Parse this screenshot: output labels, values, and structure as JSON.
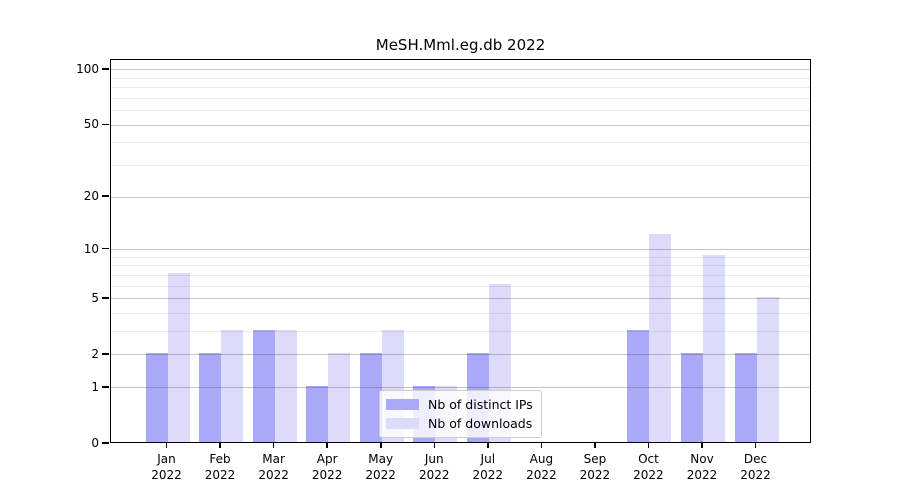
{
  "figure": {
    "background": "#ffffff"
  },
  "chart_data": {
    "type": "bar",
    "title": "MeSH.Mml.eg.db 2022",
    "categories": [
      "Jan 2022",
      "Feb 2022",
      "Mar 2022",
      "Apr 2022",
      "May 2022",
      "Jun 2022",
      "Jul 2022",
      "Aug 2022",
      "Sep 2022",
      "Oct 2022",
      "Nov 2022",
      "Dec 2022"
    ],
    "series": [
      {
        "name": "Nb of distinct IPs",
        "color": "#a9a9f8",
        "values": [
          2,
          2,
          3,
          1,
          2,
          1,
          2,
          0,
          0,
          3,
          2,
          2
        ]
      },
      {
        "name": "Nb of downloads",
        "color": "#dcdcfa",
        "values": [
          7,
          3,
          3,
          2,
          3,
          1,
          6,
          0,
          0,
          12,
          9,
          5
        ]
      }
    ],
    "xlabel": "",
    "ylabel": "",
    "yscale": "log1p",
    "ylim": [
      0,
      113
    ],
    "y_major_ticks": [
      0,
      1,
      2,
      5,
      10,
      20,
      50,
      100
    ],
    "y_minor_ticks": [
      3,
      4,
      6,
      7,
      8,
      9,
      30,
      40,
      60,
      70,
      80,
      90
    ],
    "grid": true,
    "legend_position": "inside-bottom-center"
  },
  "colors": {
    "grid_major": "#c9c9c9",
    "grid_minor": "#ececec",
    "axis": "#000000",
    "legend_border": "#cccccc"
  }
}
